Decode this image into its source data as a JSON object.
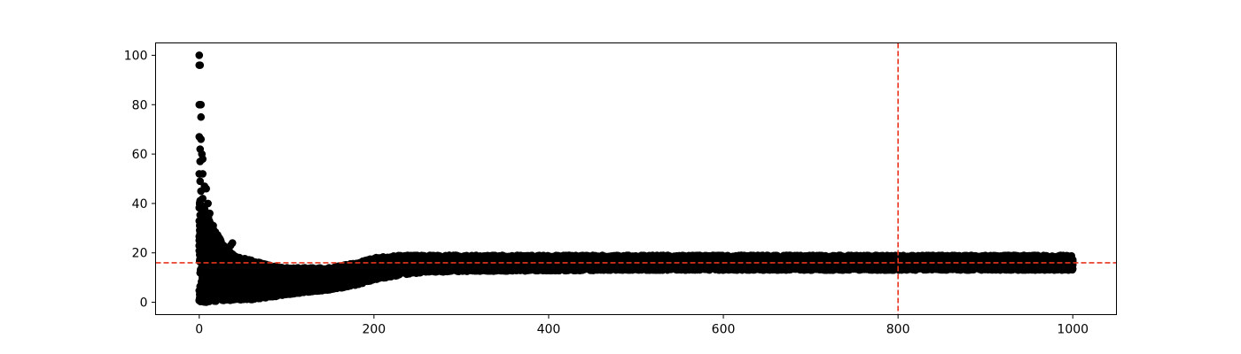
{
  "chart_data": {
    "type": "scatter",
    "title": "",
    "xlabel": "",
    "ylabel": "",
    "xlim": [
      -50,
      1050
    ],
    "ylim": [
      -5,
      105
    ],
    "xticks": [
      0,
      200,
      400,
      600,
      800,
      1000
    ],
    "yticks": [
      0,
      20,
      40,
      60,
      80,
      100
    ],
    "grid": false,
    "colors": {
      "points": "#000000",
      "reference_lines": "#e8341c",
      "axes": "#000000"
    },
    "reference_lines": [
      {
        "orientation": "horizontal",
        "y": 16,
        "style": "dashed"
      },
      {
        "orientation": "vertical",
        "x": 800,
        "style": "dashed"
      }
    ],
    "series": [
      {
        "x_range": [
          0,
          1000
        ],
        "outliers": [
          [
            0,
            100
          ],
          [
            0,
            96
          ],
          [
            1,
            96
          ],
          [
            0,
            80
          ],
          [
            1,
            80
          ],
          [
            2,
            80
          ],
          [
            2,
            75
          ],
          [
            0,
            67
          ],
          [
            2,
            66
          ],
          [
            1,
            62
          ],
          [
            3,
            60
          ],
          [
            1,
            57
          ],
          [
            4,
            58
          ],
          [
            0,
            52
          ],
          [
            4,
            52
          ],
          [
            1,
            49
          ],
          [
            6,
            47
          ],
          [
            8,
            46
          ],
          [
            2,
            45
          ],
          [
            4,
            42
          ],
          [
            10,
            40
          ],
          [
            3,
            38
          ],
          [
            12,
            36
          ],
          [
            6,
            34
          ],
          [
            8,
            31
          ],
          [
            15,
            30
          ],
          [
            14,
            27
          ],
          [
            20,
            26
          ],
          [
            10,
            25
          ],
          [
            18,
            24
          ],
          [
            38,
            24
          ],
          [
            36,
            23
          ],
          [
            25,
            22
          ],
          [
            30,
            21
          ],
          [
            22,
            20
          ]
        ],
        "band": [
          {
            "x": 0,
            "lo": 0,
            "hi": 42
          },
          {
            "x": 10,
            "lo": 0,
            "hi": 36
          },
          {
            "x": 20,
            "lo": 0.5,
            "hi": 28
          },
          {
            "x": 30,
            "lo": 0.5,
            "hi": 22
          },
          {
            "x": 40,
            "lo": 1,
            "hi": 19
          },
          {
            "x": 60,
            "lo": 1,
            "hi": 17
          },
          {
            "x": 80,
            "lo": 2,
            "hi": 15
          },
          {
            "x": 100,
            "lo": 3,
            "hi": 14
          },
          {
            "x": 120,
            "lo": 4,
            "hi": 14
          },
          {
            "x": 150,
            "lo": 5,
            "hi": 14
          },
          {
            "x": 180,
            "lo": 7,
            "hi": 16
          },
          {
            "x": 200,
            "lo": 9,
            "hi": 18
          },
          {
            "x": 230,
            "lo": 11,
            "hi": 19
          },
          {
            "x": 260,
            "lo": 12,
            "hi": 19
          },
          {
            "x": 300,
            "lo": 12.5,
            "hi": 19
          },
          {
            "x": 500,
            "lo": 13,
            "hi": 19
          },
          {
            "x": 700,
            "lo": 13,
            "hi": 19
          },
          {
            "x": 1000,
            "lo": 13,
            "hi": 19
          }
        ]
      }
    ]
  }
}
